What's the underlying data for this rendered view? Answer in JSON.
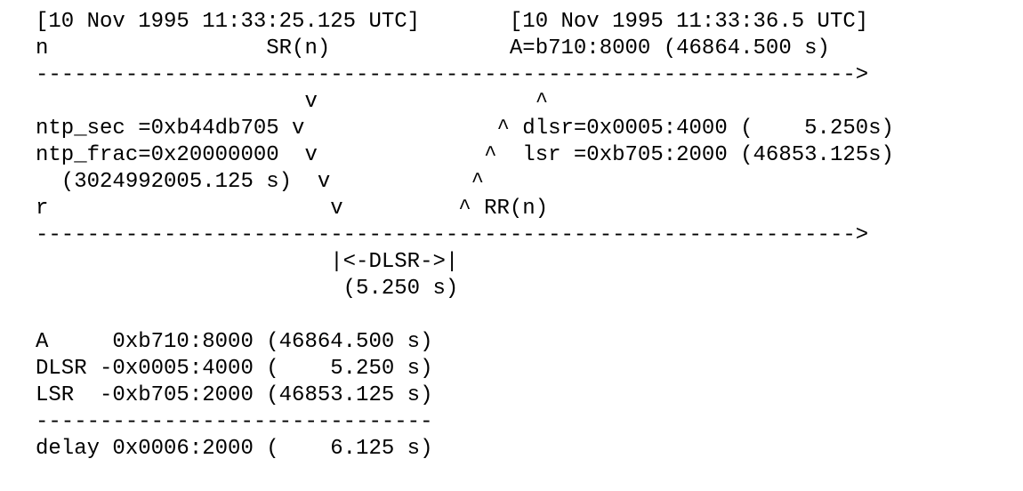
{
  "document": {
    "lines": [
      "[10 Nov 1995 11:33:25.125 UTC]       [10 Nov 1995 11:33:36.5 UTC]",
      "n                 SR(n)              A=b710:8000 (46864.500 s)",
      "---------------------------------------------------------------->",
      "                     v                 ^",
      "ntp_sec =0xb44db705 v               ^ dlsr=0x0005:4000 (    5.250s)",
      "ntp_frac=0x20000000  v             ^  lsr =0xb705:2000 (46853.125s)",
      "  (3024992005.125 s)  v           ^",
      "r                      v         ^ RR(n)",
      "---------------------------------------------------------------->",
      "                       |<-DLSR->|",
      "                        (5.250 s)",
      "",
      "A     0xb710:8000 (46864.500 s)",
      "DLSR -0x0005:4000 (    5.250 s)",
      "LSR  -0xb705:2000 (46853.125 s)",
      "-------------------------------",
      "delay 0x0006:2000 (    6.125 s)"
    ]
  }
}
